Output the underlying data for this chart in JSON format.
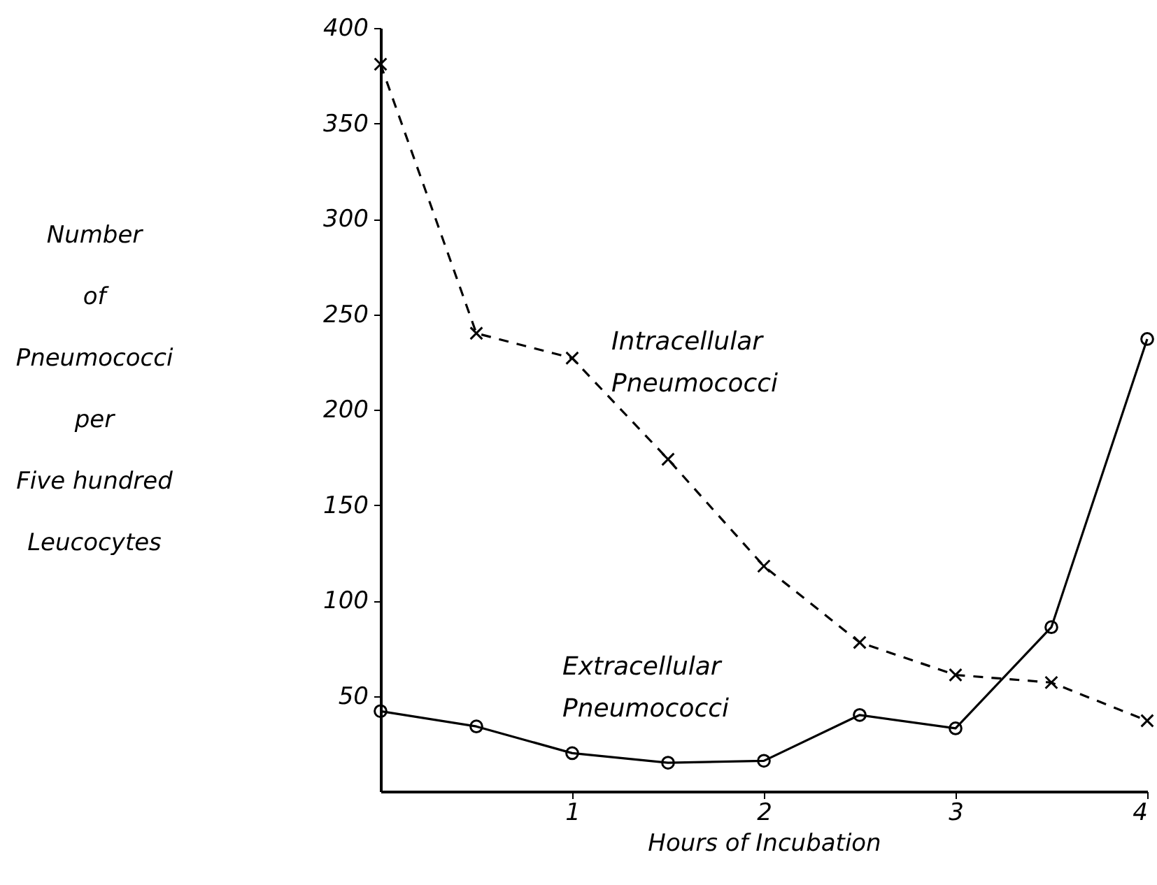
{
  "chart_data": {
    "type": "line",
    "xlabel": "Hours of Incubation",
    "ylabel": "Number\nof\nPneumococci\nper\nFive hundred\nLeucocytes",
    "x": [
      0,
      0.5,
      1,
      1.5,
      2,
      2.5,
      3,
      3.5,
      4
    ],
    "series": [
      {
        "name": "Intracellular Pneumococci",
        "color": "#000000",
        "marker": "cross",
        "line_style": "dashed",
        "values": [
          381,
          240,
          227,
          174,
          118,
          78,
          61,
          57,
          37
        ]
      },
      {
        "name": "Extracellular Pneumococci",
        "color": "#000000",
        "marker": "circle",
        "line_style": "solid",
        "values": [
          42,
          34,
          20,
          15,
          16,
          40,
          33,
          86,
          237
        ]
      }
    ],
    "xlim": [
      0,
      4
    ],
    "xticks": [
      1,
      2,
      3,
      4
    ],
    "ylim": [
      0,
      400
    ],
    "yticks": [
      50,
      100,
      150,
      200,
      250,
      300,
      350,
      400
    ]
  }
}
